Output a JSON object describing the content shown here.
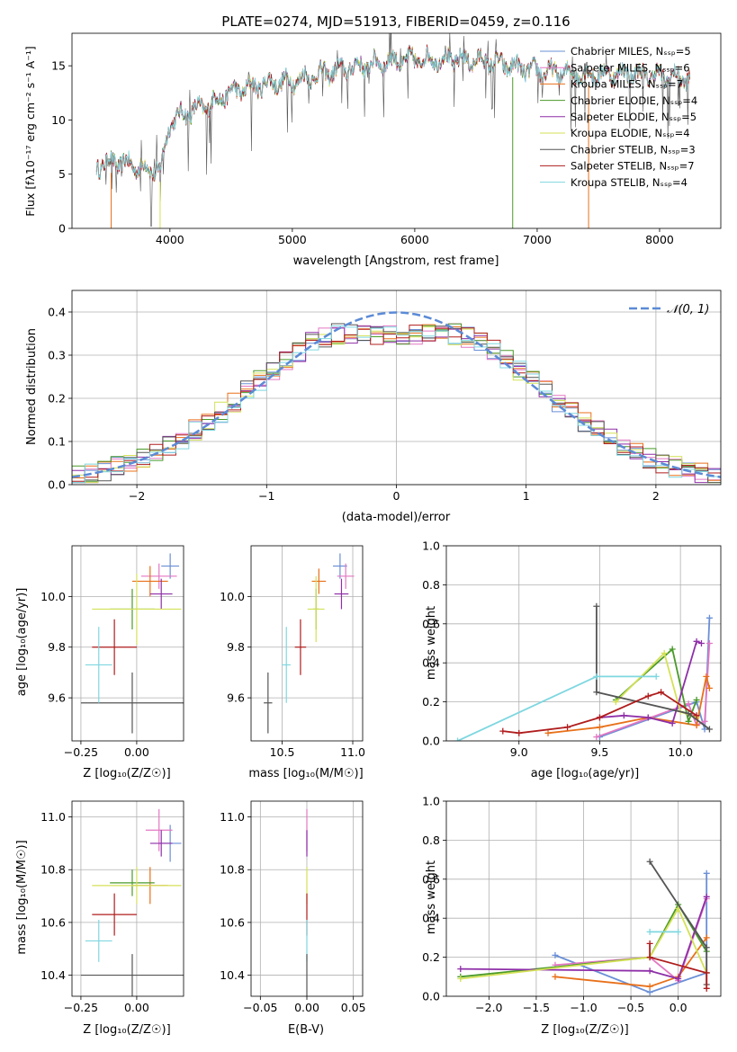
{
  "colors": {
    "chabrier_miles": "#6a8fd6",
    "salpeter_miles": "#e377c2",
    "kroupa_miles": "#e8701a",
    "chabrier_elodie": "#4a9a2a",
    "salpeter_elodie": "#8e2fa8",
    "kroupa_elodie": "#d4e157",
    "chabrier_stelib": "#555555",
    "salpeter_stelib": "#b01c1c",
    "kroupa_stelib": "#7fd7e0",
    "normal": "#5b8ad6"
  },
  "chart_data": [
    {
      "id": "spectrum",
      "type": "line",
      "title": "PLATE=0274, MJD=51913, FIBERID=0459, z=0.116",
      "xlabel": "wavelength [Angstrom, rest frame]",
      "ylabel": "Flux [fλ10⁻¹⁷ erg cm⁻² s⁻¹ A⁻¹]",
      "xlim": [
        3200,
        8500
      ],
      "ylim": [
        0,
        18
      ],
      "xticks": [
        "4000",
        "5000",
        "6000",
        "7000",
        "8000"
      ],
      "yticks": [
        "0",
        "5",
        "10",
        "15"
      ],
      "legend": "upper-right",
      "grid": false,
      "continuum": {
        "x": [
          3400,
          3550,
          3700,
          3850,
          3920,
          4000,
          4100,
          4300,
          4500,
          4800,
          5000,
          5300,
          5500,
          5800,
          6000,
          6300,
          6600,
          7000,
          7400,
          7800,
          8250
        ],
        "y": [
          5.8,
          6.2,
          5.8,
          5.4,
          5.3,
          9.8,
          10.5,
          11.3,
          12.6,
          13.4,
          13.6,
          14.4,
          14.9,
          15.4,
          15.6,
          15.6,
          15.4,
          14.5,
          14.2,
          14.3,
          13.8
        ]
      },
      "series": [
        {
          "name": "Chabrier MILES, Nₛₛₚ=5",
          "color_key": "chabrier_miles"
        },
        {
          "name": "Salpeter MILES, Nₛₛₚ=6",
          "color_key": "salpeter_miles"
        },
        {
          "name": "Kroupa MILES, Nₛₛₚ=7",
          "color_key": "kroupa_miles"
        },
        {
          "name": "Chabrier ELODIE, Nₛₛₚ=4",
          "color_key": "chabrier_elodie"
        },
        {
          "name": "Salpeter ELODIE, Nₛₛₚ=5",
          "color_key": "salpeter_elodie"
        },
        {
          "name": "Kroupa ELODIE, Nₛₛₚ=4",
          "color_key": "kroupa_elodie"
        },
        {
          "name": "Chabrier STELIB, Nₛₛₚ=3",
          "color_key": "chabrier_stelib"
        },
        {
          "name": "Salpeter STELIB, Nₛₛₚ=7",
          "color_key": "salpeter_stelib"
        },
        {
          "name": "Kroupa STELIB, Nₛₛₚ=4",
          "color_key": "kroupa_stelib"
        }
      ]
    },
    {
      "id": "residuals",
      "type": "histogram",
      "xlabel": "(data-model)/error",
      "ylabel": "Normed distribution",
      "xlim": [
        -2.5,
        2.5
      ],
      "ylim": [
        0,
        0.45
      ],
      "xticks": [
        "−2",
        "−1",
        "0",
        "1",
        "2"
      ],
      "yticks": [
        "0.0",
        "0.1",
        "0.2",
        "0.3",
        "0.4"
      ],
      "grid": true,
      "legend": "upper-right",
      "curve_label": "𝒩(0, 1)"
    },
    {
      "id": "age-vs-Z",
      "type": "errorbar",
      "xlabel": "Z [log₁₀(Z/Z☉)]",
      "ylabel": "age  [log₁₀(age/yr)]",
      "xlim": [
        -0.29,
        0.21
      ],
      "ylim": [
        9.43,
        10.2
      ],
      "xticks": [
        "−0.25",
        "0.00"
      ],
      "yticks": [
        "9.6",
        "9.8",
        "10.0"
      ],
      "grid": true,
      "points": [
        {
          "key": "chabrier_miles",
          "x": 0.15,
          "y": 10.12,
          "xerr": 0.04,
          "yerr": 0.05
        },
        {
          "key": "salpeter_miles",
          "x": 0.1,
          "y": 10.08,
          "xerr": 0.08,
          "yerr": 0.05
        },
        {
          "key": "kroupa_miles",
          "x": 0.06,
          "y": 10.06,
          "xerr": 0.08,
          "yerr": 0.06
        },
        {
          "key": "chabrier_elodie",
          "x": -0.02,
          "y": 9.95,
          "xerr": 0.1,
          "yerr": 0.08
        },
        {
          "key": "salpeter_elodie",
          "x": 0.11,
          "y": 10.01,
          "xerr": 0.05,
          "yerr": 0.06
        },
        {
          "key": "kroupa_elodie",
          "x": 0.0,
          "y": 9.95,
          "xerr": 0.2,
          "yerr": 0.14
        },
        {
          "key": "chabrier_stelib",
          "x": -0.02,
          "y": 9.58,
          "xerr": 0.23,
          "yerr": 0.12
        },
        {
          "key": "salpeter_stelib",
          "x": -0.1,
          "y": 9.8,
          "xerr": 0.1,
          "yerr": 0.11
        },
        {
          "key": "kroupa_stelib",
          "x": -0.17,
          "y": 9.73,
          "xerr": 0.06,
          "yerr": 0.15
        }
      ]
    },
    {
      "id": "age-vs-mass",
      "type": "errorbar",
      "xlabel": "mass [log₁₀(M/M☉)]",
      "ylabel": "",
      "xlim": [
        10.28,
        11.07
      ],
      "ylim": [
        9.43,
        10.2
      ],
      "xticks": [
        "10.5",
        "11.0"
      ],
      "yticks": [
        "9.6",
        "9.8",
        "10.0"
      ],
      "grid": true,
      "points": [
        {
          "key": "chabrier_miles",
          "x": 10.91,
          "y": 10.12,
          "xerr": 0.05,
          "yerr": 0.05
        },
        {
          "key": "salpeter_miles",
          "x": 10.95,
          "y": 10.08,
          "xerr": 0.06,
          "yerr": 0.05
        },
        {
          "key": "kroupa_miles",
          "x": 10.76,
          "y": 10.06,
          "xerr": 0.05,
          "yerr": 0.05
        },
        {
          "key": "chabrier_elodie",
          "x": 10.74,
          "y": 9.95,
          "xerr": 0.02,
          "yerr": 0.08
        },
        {
          "key": "salpeter_elodie",
          "x": 10.92,
          "y": 10.01,
          "xerr": 0.05,
          "yerr": 0.06
        },
        {
          "key": "kroupa_elodie",
          "x": 10.74,
          "y": 9.95,
          "xerr": 0.06,
          "yerr": 0.13
        },
        {
          "key": "chabrier_stelib",
          "x": 10.4,
          "y": 9.58,
          "xerr": 0.03,
          "yerr": 0.12
        },
        {
          "key": "salpeter_stelib",
          "x": 10.63,
          "y": 9.8,
          "xerr": 0.04,
          "yerr": 0.11
        },
        {
          "key": "kroupa_stelib",
          "x": 10.53,
          "y": 9.73,
          "xerr": 0.03,
          "yerr": 0.15
        }
      ]
    },
    {
      "id": "weight-vs-age",
      "type": "line",
      "xlabel": "age  [log₁₀(age/yr)]",
      "ylabel": "mass weight",
      "xlim": [
        8.55,
        10.25
      ],
      "ylim": [
        0,
        1.0
      ],
      "xticks": [
        "9.0",
        "9.5",
        "10.0"
      ],
      "yticks": [
        "0.0",
        "0.2",
        "0.4",
        "0.6",
        "0.8",
        "1.0"
      ],
      "grid": true,
      "series": [
        {
          "key": "chabrier_miles",
          "x": [
            9.5,
            10.1,
            10.15,
            10.18
          ],
          "y": [
            0.02,
            0.2,
            0.06,
            0.63
          ]
        },
        {
          "key": "salpeter_miles",
          "x": [
            9.48,
            10.05,
            10.1,
            10.15,
            10.18
          ],
          "y": [
            0.02,
            0.19,
            0.08,
            0.1,
            0.5
          ]
        },
        {
          "key": "kroupa_miles",
          "x": [
            9.18,
            9.5,
            9.8,
            10.1,
            10.16,
            10.18
          ],
          "y": [
            0.04,
            0.07,
            0.12,
            0.08,
            0.33,
            0.27
          ]
        },
        {
          "key": "chabrier_elodie",
          "x": [
            9.6,
            9.95,
            10.05,
            10.1
          ],
          "y": [
            0.21,
            0.47,
            0.1,
            0.21
          ]
        },
        {
          "key": "salpeter_elodie",
          "x": [
            9.5,
            9.65,
            9.8,
            9.95,
            10.1,
            10.13
          ],
          "y": [
            0.12,
            0.13,
            0.12,
            0.09,
            0.51,
            0.5
          ]
        },
        {
          "key": "kroupa_elodie",
          "x": [
            9.6,
            9.9,
            10.0,
            10.1
          ],
          "y": [
            0.2,
            0.45,
            0.15,
            0.12
          ]
        },
        {
          "key": "chabrier_stelib",
          "x": [
            9.48,
            9.48,
            10.05,
            10.18
          ],
          "y": [
            0.69,
            0.25,
            0.14,
            0.06
          ]
        },
        {
          "key": "salpeter_stelib",
          "x": [
            8.9,
            9.0,
            9.3,
            9.5,
            9.8,
            9.88,
            10.1
          ],
          "y": [
            0.05,
            0.04,
            0.07,
            0.12,
            0.23,
            0.25,
            0.13
          ]
        },
        {
          "key": "kroupa_stelib",
          "x": [
            8.62,
            9.48,
            9.85
          ],
          "y": [
            0.0,
            0.33,
            0.33
          ]
        }
      ]
    },
    {
      "id": "mass-vs-Z",
      "type": "errorbar",
      "xlabel": "Z [log₁₀(Z/Z☉)]",
      "ylabel": "mass [log₁₀(M/M☉)]",
      "xlim": [
        -0.29,
        0.21
      ],
      "ylim": [
        10.32,
        11.06
      ],
      "xticks": [
        "−0.25",
        "0.00"
      ],
      "yticks": [
        "10.4",
        "10.6",
        "10.8",
        "11.0"
      ],
      "grid": true,
      "points": [
        {
          "key": "chabrier_miles",
          "x": 0.15,
          "y": 10.9,
          "xerr": 0.05,
          "yerr": 0.07
        },
        {
          "key": "salpeter_miles",
          "x": 0.1,
          "y": 10.95,
          "xerr": 0.06,
          "yerr": 0.08
        },
        {
          "key": "kroupa_miles",
          "x": 0.06,
          "y": 10.74,
          "xerr": 0.08,
          "yerr": 0.07
        },
        {
          "key": "chabrier_elodie",
          "x": -0.02,
          "y": 10.75,
          "xerr": 0.1,
          "yerr": 0.05
        },
        {
          "key": "salpeter_elodie",
          "x": 0.11,
          "y": 10.9,
          "xerr": 0.05,
          "yerr": 0.05
        },
        {
          "key": "kroupa_elodie",
          "x": 0.0,
          "y": 10.74,
          "xerr": 0.2,
          "yerr": 0.07
        },
        {
          "key": "chabrier_stelib",
          "x": -0.02,
          "y": 10.4,
          "xerr": 0.23,
          "yerr": 0.08
        },
        {
          "key": "salpeter_stelib",
          "x": -0.1,
          "y": 10.63,
          "xerr": 0.1,
          "yerr": 0.08
        },
        {
          "key": "kroupa_stelib",
          "x": -0.17,
          "y": 10.53,
          "xerr": 0.06,
          "yerr": 0.08
        }
      ]
    },
    {
      "id": "mass-vs-ebv",
      "type": "errorbar",
      "xlabel": "E(B-V)",
      "ylabel": "",
      "xlim": [
        -0.06,
        0.06
      ],
      "ylim": [
        10.32,
        11.06
      ],
      "xticks": [
        "−0.05",
        "0.00",
        "0.05"
      ],
      "yticks": [
        "10.4",
        "10.6",
        "10.8",
        "11.0"
      ],
      "grid": true,
      "points": [
        {
          "key": "salpeter_miles",
          "x": 0.0,
          "y": 10.95,
          "xerr": 0.0,
          "yerr": 0.08
        },
        {
          "key": "salpeter_elodie",
          "x": 0.0,
          "y": 10.9,
          "xerr": 0.0,
          "yerr": 0.05
        },
        {
          "key": "kroupa_elodie",
          "x": 0.0,
          "y": 10.74,
          "xerr": 0.0,
          "yerr": 0.07
        },
        {
          "key": "salpeter_stelib",
          "x": 0.0,
          "y": 10.63,
          "xerr": 0.0,
          "yerr": 0.08
        },
        {
          "key": "kroupa_stelib",
          "x": 0.0,
          "y": 10.53,
          "xerr": 0.0,
          "yerr": 0.08
        },
        {
          "key": "chabrier_stelib",
          "x": 0.0,
          "y": 10.4,
          "xerr": 0.0,
          "yerr": 0.08
        }
      ]
    },
    {
      "id": "weight-vs-Z",
      "type": "line",
      "xlabel": "Z [log₁₀(Z/Z☉)]",
      "ylabel": "mass weight",
      "xlim": [
        -2.45,
        0.45
      ],
      "ylim": [
        0,
        1.0
      ],
      "xticks": [
        "−2.0",
        "−1.5",
        "−1.0",
        "−0.5",
        "0.0"
      ],
      "yticks": [
        "0.0",
        "0.2",
        "0.4",
        "0.6",
        "0.8",
        "1.0"
      ],
      "grid": true,
      "series": [
        {
          "key": "chabrier_miles",
          "x": [
            -1.3,
            -0.3,
            0.3,
            0.3
          ],
          "y": [
            0.21,
            0.02,
            0.12,
            0.63
          ]
        },
        {
          "key": "salpeter_miles",
          "x": [
            -1.3,
            -0.3,
            0.0,
            0.3
          ],
          "y": [
            0.16,
            0.2,
            0.08,
            0.5
          ]
        },
        {
          "key": "kroupa_miles",
          "x": [
            -1.3,
            -0.3,
            0.0,
            0.3
          ],
          "y": [
            0.1,
            0.05,
            0.1,
            0.3
          ]
        },
        {
          "key": "chabrier_elodie",
          "x": [
            -2.3,
            -0.3,
            0.0,
            0.3
          ],
          "y": [
            0.1,
            0.2,
            0.47,
            0.23
          ]
        },
        {
          "key": "salpeter_elodie",
          "x": [
            -2.3,
            -0.3,
            0.0,
            0.3
          ],
          "y": [
            0.14,
            0.13,
            0.09,
            0.51
          ]
        },
        {
          "key": "kroupa_elodie",
          "x": [
            -2.3,
            -0.3,
            0.0,
            0.3
          ],
          "y": [
            0.09,
            0.2,
            0.45,
            0.12
          ]
        },
        {
          "key": "chabrier_stelib",
          "x": [
            -0.3,
            0.3,
            0.3
          ],
          "y": [
            0.69,
            0.25,
            0.06
          ]
        },
        {
          "key": "salpeter_stelib",
          "x": [
            -0.3,
            -0.3,
            0.3,
            0.3
          ],
          "y": [
            0.27,
            0.2,
            0.12,
            0.04
          ]
        },
        {
          "key": "kroupa_stelib",
          "x": [
            -0.3,
            0.0
          ],
          "y": [
            0.33,
            0.33
          ]
        }
      ]
    }
  ]
}
